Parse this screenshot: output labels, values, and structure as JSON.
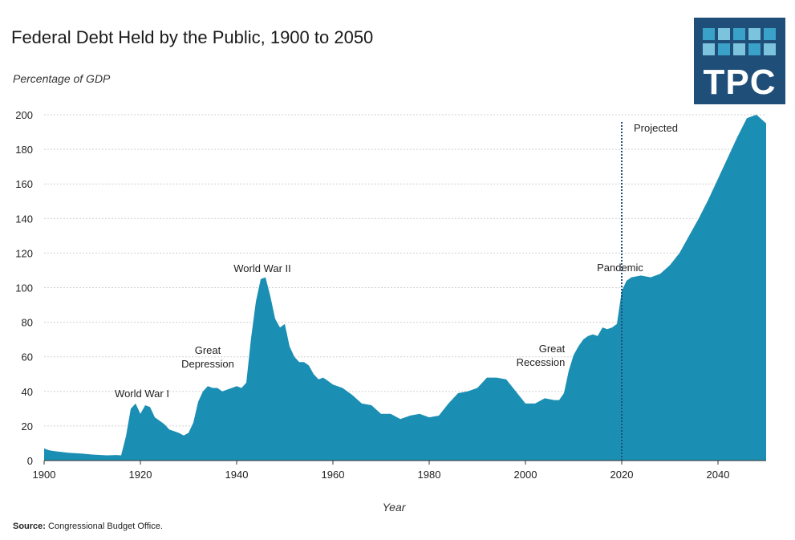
{
  "colors": {
    "area": "#1b8fb3",
    "logo_bg": "#1f4e79",
    "logo_sq": "#3aa2c9",
    "grid": "#d0d0d0",
    "vline": "#1f4e79"
  },
  "logo": {
    "text": "TPC"
  },
  "source": {
    "label": "Source:",
    "text": "Congressional Budget Office."
  },
  "chart_data": {
    "type": "area",
    "title": "Federal Debt Held by the Public, 1900 to 2050",
    "ylabel": "Percentage of GDP",
    "xlabel": "Year",
    "xlim": [
      1900,
      2050
    ],
    "ylim": [
      0,
      200
    ],
    "xticks": [
      1900,
      1920,
      1940,
      1960,
      1980,
      2000,
      2020,
      2040
    ],
    "yticks": [
      0,
      20,
      40,
      60,
      80,
      100,
      120,
      140,
      160,
      180,
      200
    ],
    "grid": "horizontal dotted",
    "projection_start": 2020,
    "series": [
      {
        "x": [
          1900,
          1901,
          1902,
          1905,
          1908,
          1910,
          1913,
          1915,
          1916,
          1917,
          1918,
          1919,
          1920,
          1921,
          1922,
          1923,
          1924,
          1925,
          1926,
          1927,
          1928,
          1929,
          1930,
          1931,
          1932,
          1933,
          1934,
          1935,
          1936,
          1937,
          1938,
          1939,
          1940,
          1941,
          1942,
          1943,
          1944,
          1945,
          1946,
          1947,
          1948,
          1949,
          1950,
          1951,
          1952,
          1953,
          1954,
          1955,
          1956,
          1957,
          1958,
          1959,
          1960,
          1962,
          1964,
          1966,
          1968,
          1970,
          1972,
          1974,
          1976,
          1978,
          1980,
          1982,
          1984,
          1986,
          1988,
          1990,
          1992,
          1994,
          1996,
          1998,
          2000,
          2002,
          2004,
          2006,
          2007,
          2008,
          2009,
          2010,
          2011,
          2012,
          2013,
          2014,
          2015,
          2016,
          2017,
          2018,
          2019,
          2020,
          2021,
          2022,
          2024,
          2026,
          2028,
          2030,
          2032,
          2034,
          2036,
          2038,
          2040,
          2042,
          2044,
          2046,
          2048,
          2050
        ],
        "y": [
          7,
          6,
          5.5,
          4.5,
          4,
          3.5,
          3,
          3.2,
          3,
          14,
          30,
          33,
          27,
          32,
          31,
          25,
          23,
          21,
          18,
          17,
          16,
          14.5,
          16,
          22,
          34,
          40,
          43,
          42,
          42,
          40,
          41,
          42,
          43,
          42,
          45,
          71,
          92,
          105,
          106,
          95,
          82,
          77,
          79,
          66,
          60,
          57,
          57,
          55,
          50,
          47,
          48,
          46,
          44,
          42,
          38,
          33,
          32,
          27,
          27,
          24,
          26,
          27,
          25,
          26,
          33,
          39,
          40,
          42,
          48,
          48,
          47,
          40,
          33,
          33,
          36,
          35,
          35,
          39,
          52,
          61,
          66,
          70,
          72,
          73,
          72,
          77,
          76,
          77,
          79,
          98,
          104,
          106,
          107,
          106,
          108,
          113,
          120,
          130,
          140,
          151,
          163,
          175,
          187,
          198,
          210,
          195
        ]
      }
    ],
    "annotations": [
      {
        "text": "World War I"
      },
      {
        "text": "Great"
      },
      {
        "text": "Depression"
      },
      {
        "text": "World War II"
      },
      {
        "text": "Great"
      },
      {
        "text": "Recession"
      },
      {
        "text": "Pandemic"
      },
      {
        "text": "Projected"
      }
    ]
  }
}
